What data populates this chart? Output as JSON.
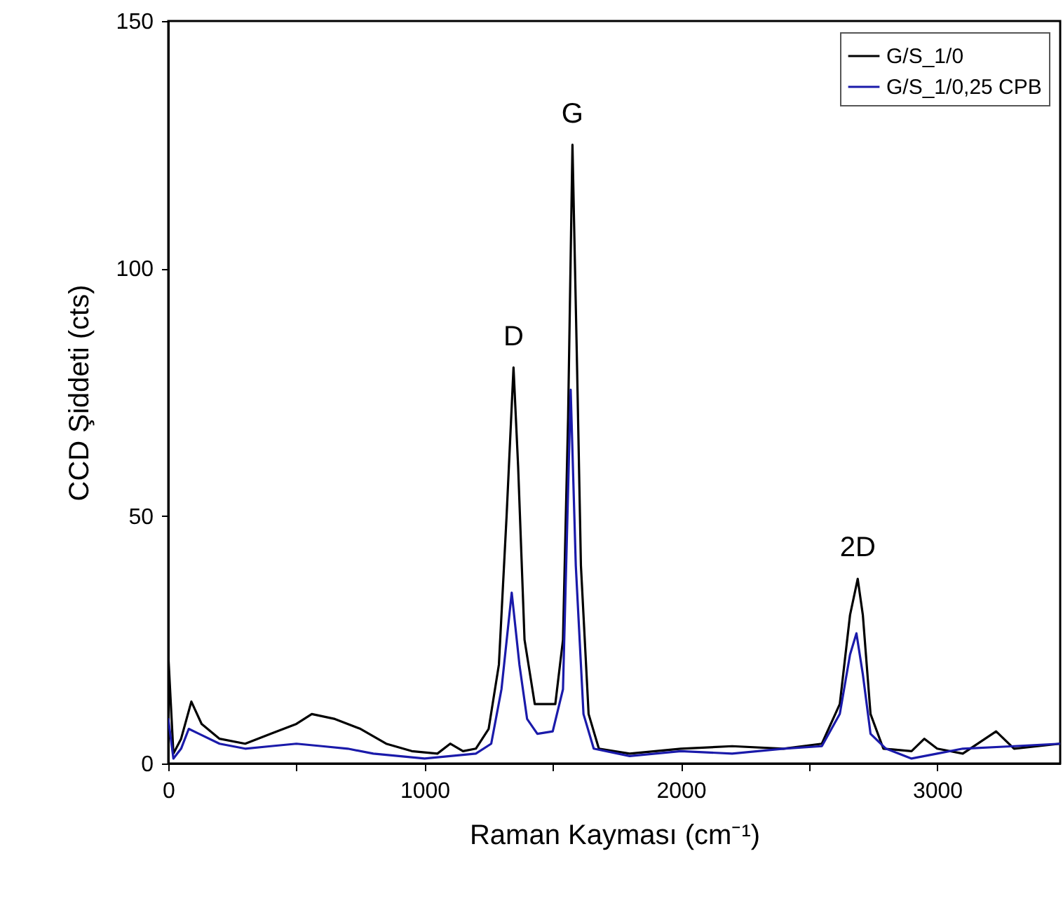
{
  "chart_data": {
    "type": "line",
    "xlabel": "Raman Kayması (cm⁻¹)",
    "ylabel": "CCD Şiddeti (cts)",
    "xlim": [
      0,
      3480
    ],
    "ylim": [
      0,
      150
    ],
    "xticks": [
      0,
      {
        "value": 500,
        "label": null
      },
      1000,
      {
        "value": 1500,
        "label": null
      },
      2000,
      {
        "value": 2500,
        "label": null
      },
      3000
    ],
    "yticks": [
      0,
      50,
      100,
      150
    ],
    "grid": false,
    "legend": "top right",
    "line_style": "solid",
    "marker": "none",
    "annotations": [
      {
        "text": "D",
        "x": 1347,
        "y": 80
      },
      {
        "text": "G",
        "x": 1577,
        "y": 125
      },
      {
        "text": "2D",
        "x": 2690,
        "y": 37.3
      }
    ],
    "series": [
      {
        "name": "G/S_1/0",
        "color": "#000000",
        "x": [
          0,
          20,
          50,
          90,
          130,
          200,
          300,
          400,
          500,
          560,
          650,
          750,
          850,
          950,
          1050,
          1100,
          1150,
          1200,
          1250,
          1290,
          1320,
          1347,
          1365,
          1390,
          1430,
          1470,
          1510,
          1540,
          1560,
          1577,
          1595,
          1610,
          1640,
          1680,
          1800,
          2000,
          2200,
          2400,
          2550,
          2620,
          2660,
          2690,
          2710,
          2740,
          2790,
          2900,
          2950,
          3000,
          3100,
          3230,
          3300,
          3480
        ],
        "values": [
          22,
          2,
          5,
          12.5,
          8,
          5,
          4,
          6,
          8,
          10,
          9,
          7,
          4,
          2.5,
          2,
          4,
          2.5,
          3,
          7,
          20,
          50,
          80,
          60,
          25,
          12,
          12,
          12,
          25,
          70,
          125,
          80,
          40,
          10,
          3,
          2,
          3,
          3.5,
          3,
          4,
          12,
          30,
          37.3,
          30,
          10,
          3,
          2.5,
          5,
          3,
          2,
          6.5,
          3,
          4
        ]
      },
      {
        "name": "G/S_1/0,25 CPB",
        "color": "#1a1aaa",
        "x": [
          0,
          20,
          50,
          80,
          120,
          200,
          300,
          400,
          500,
          600,
          700,
          800,
          900,
          1000,
          1100,
          1200,
          1260,
          1300,
          1340,
          1370,
          1400,
          1440,
          1500,
          1540,
          1570,
          1590,
          1620,
          1660,
          1800,
          2000,
          2200,
          2400,
          2550,
          2620,
          2660,
          2685,
          2710,
          2740,
          2800,
          2900,
          3000,
          3100,
          3300,
          3480
        ],
        "values": [
          9,
          1,
          3,
          7,
          6,
          4,
          3,
          3.5,
          4,
          3.5,
          3,
          2,
          1.5,
          1,
          1.5,
          2,
          4,
          15,
          34.5,
          20,
          9,
          6,
          6.5,
          15,
          75.5,
          40,
          10,
          3,
          1.5,
          2.5,
          2,
          3,
          3.5,
          10,
          22,
          26.3,
          18,
          6,
          3,
          1,
          2,
          3,
          3.5,
          4
        ]
      }
    ]
  }
}
